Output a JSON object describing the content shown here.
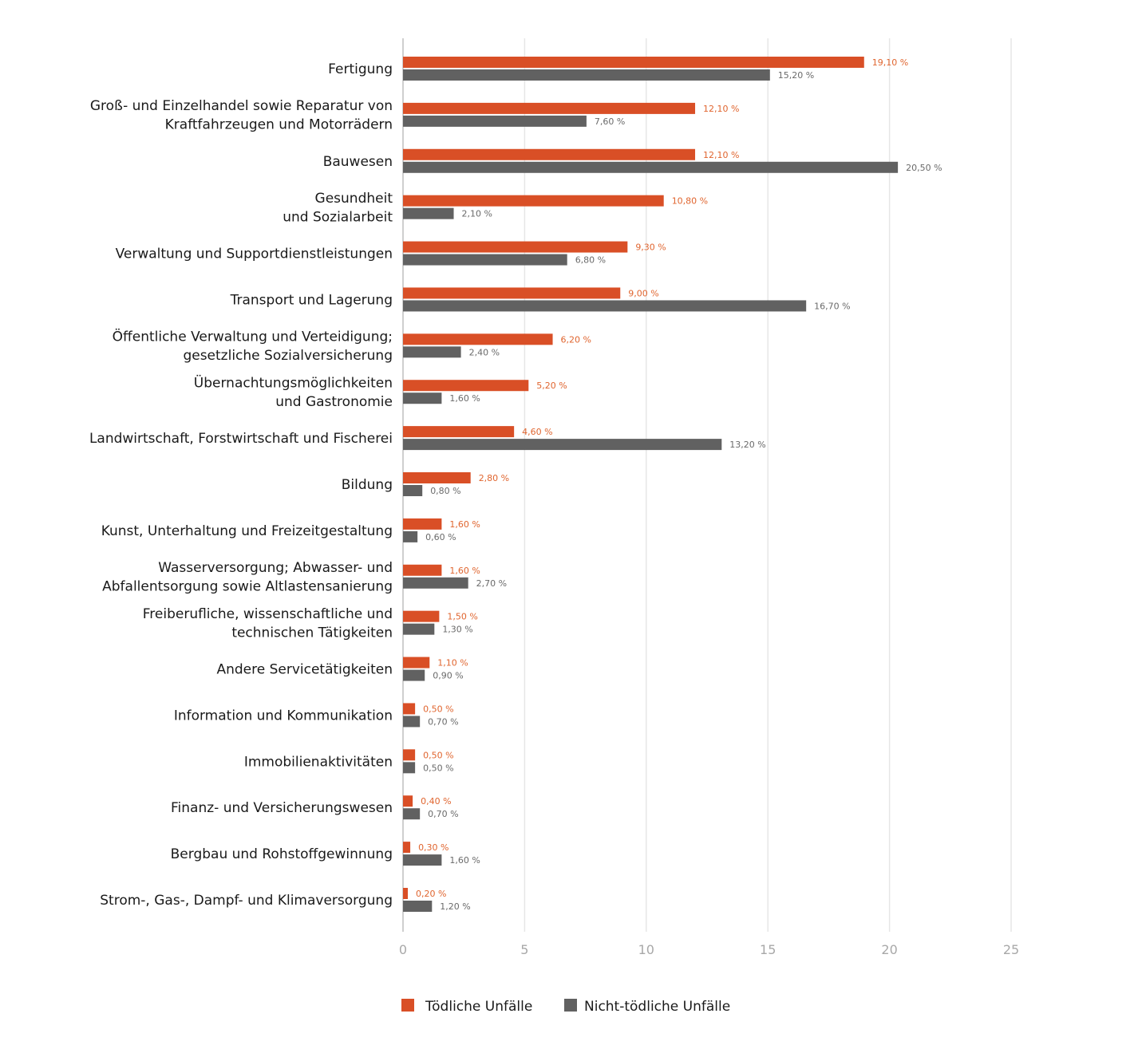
{
  "chart_data": {
    "type": "bar",
    "orientation": "horizontal",
    "categories": [
      [
        "Fertigung"
      ],
      [
        "Groß- und Einzelhandel sowie Reparatur von",
        "Kraftfahrzeugen und Motorrädern"
      ],
      [
        "Bauwesen"
      ],
      [
        "Gesundheit",
        "und Sozialarbeit"
      ],
      [
        "Verwaltung und Supportdienstleistungen"
      ],
      [
        "Transport und Lagerung"
      ],
      [
        "Öffentliche Verwaltung und Verteidigung;",
        "gesetzliche Sozialversicherung"
      ],
      [
        "Übernachtungsmöglichkeiten",
        "und Gastronomie"
      ],
      [
        "Landwirtschaft, Forstwirtschaft und Fischerei"
      ],
      [
        "Bildung"
      ],
      [
        "Kunst, Unterhaltung und Freizeitgestaltung"
      ],
      [
        "Wasserversorgung; Abwasser- und",
        "Abfallentsorgung sowie Altlastensanierung"
      ],
      [
        "Freiberufliche, wissenschaftliche und",
        "technischen Tätigkeiten"
      ],
      [
        "Andere Servicetätigkeiten"
      ],
      [
        "Information und Kommunikation"
      ],
      [
        "Immobilienaktivitäten"
      ],
      [
        "Finanz- und Versicherungswesen"
      ],
      [
        "Bergbau und Rohstoffgewinnung"
      ],
      [
        "Strom-, Gas-, Dampf- und Klimaversorgung"
      ]
    ],
    "series": [
      {
        "name": "Tödliche Unfälle",
        "color": "#d94f26",
        "values": [
          19.1,
          12.1,
          12.1,
          10.8,
          9.3,
          9.0,
          6.2,
          5.2,
          4.6,
          2.8,
          1.6,
          1.6,
          1.5,
          1.1,
          0.5,
          0.5,
          0.4,
          0.3,
          0.2
        ],
        "labels": [
          "19,10 %",
          "12,10 %",
          "12,10 %",
          "10,80 %",
          "9,30 %",
          "9,00 %",
          "6,20 %",
          "5,20 %",
          "4,60 %",
          "2,80 %",
          "1,60 %",
          "1,60 %",
          "1,50 %",
          "1,10 %",
          "0,50 %",
          "0,50 %",
          "0,40 %",
          "0,30 %",
          "0,20 %"
        ]
      },
      {
        "name": "Nicht-tödliche Unfälle",
        "color": "#616161",
        "values": [
          15.2,
          7.6,
          20.5,
          2.1,
          6.8,
          16.7,
          2.4,
          1.6,
          13.2,
          0.8,
          0.6,
          2.7,
          1.3,
          0.9,
          0.7,
          0.5,
          0.7,
          1.6,
          1.2
        ],
        "labels": [
          "15,20 %",
          "7,60 %",
          "20,50 %",
          "2,10 %",
          "6,80 %",
          "16,70 %",
          "2,40 %",
          "1,60 %",
          "13,20 %",
          "0,80 %",
          "0,60 %",
          "2,70 %",
          "1,30 %",
          "0,90 %",
          "0,70 %",
          "0,50 %",
          "0,70 %",
          "1,60 %",
          "1,20 %"
        ]
      }
    ],
    "xlim": [
      0,
      25
    ],
    "xticks": [
      "0",
      "5",
      "10",
      "15",
      "20",
      "25"
    ],
    "grid": true,
    "legend_position": "bottom",
    "title": "",
    "xlabel": "",
    "ylabel": ""
  }
}
